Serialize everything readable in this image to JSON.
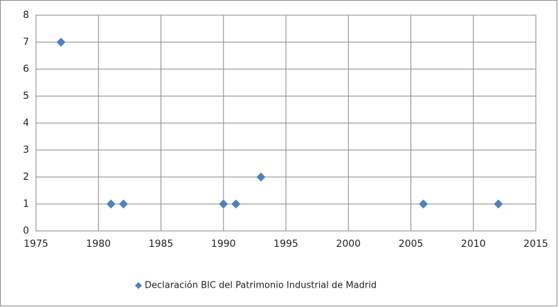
{
  "chart_data": {
    "type": "scatter",
    "series": [
      {
        "name": "Declaración BIC del Patrimonio Industrial de Madrid",
        "color": "#4f81bd",
        "x": [
          1977,
          1981,
          1982,
          1990,
          1991,
          1993,
          2006,
          2012
        ],
        "values": [
          7,
          1,
          1,
          1,
          1,
          2,
          1,
          1
        ]
      }
    ],
    "xlim": [
      1975,
      2015
    ],
    "xticks": [
      1975,
      1980,
      1985,
      1990,
      1995,
      2000,
      2005,
      2010,
      2015
    ],
    "ylim": [
      0,
      8
    ],
    "yticks": [
      0,
      1,
      2,
      3,
      4,
      5,
      6,
      7,
      8
    ],
    "grid": true,
    "legend": "bottom"
  }
}
